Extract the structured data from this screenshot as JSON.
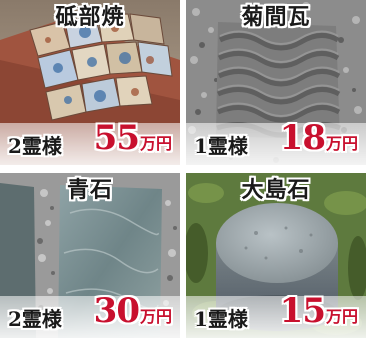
{
  "products": [
    {
      "title": "砥部焼",
      "count": "2霊様",
      "price_number": "55",
      "price_unit": "万円",
      "image": "tobe-ware-tiles-photo"
    },
    {
      "title": "菊間瓦",
      "count": "1霊様",
      "price_number": "18",
      "price_unit": "万円",
      "image": "kikuma-roof-tile-photo"
    },
    {
      "title": "青石",
      "count": "2霊様",
      "price_number": "30",
      "price_unit": "万円",
      "image": "blue-stone-slab-photo"
    },
    {
      "title": "大島石",
      "count": "1霊様",
      "price_number": "15",
      "price_unit": "万円",
      "image": "oshima-stone-round-photo"
    }
  ],
  "colors": {
    "price": "#c8102e",
    "text": "#1a1a1a",
    "background": "#ffffff"
  }
}
